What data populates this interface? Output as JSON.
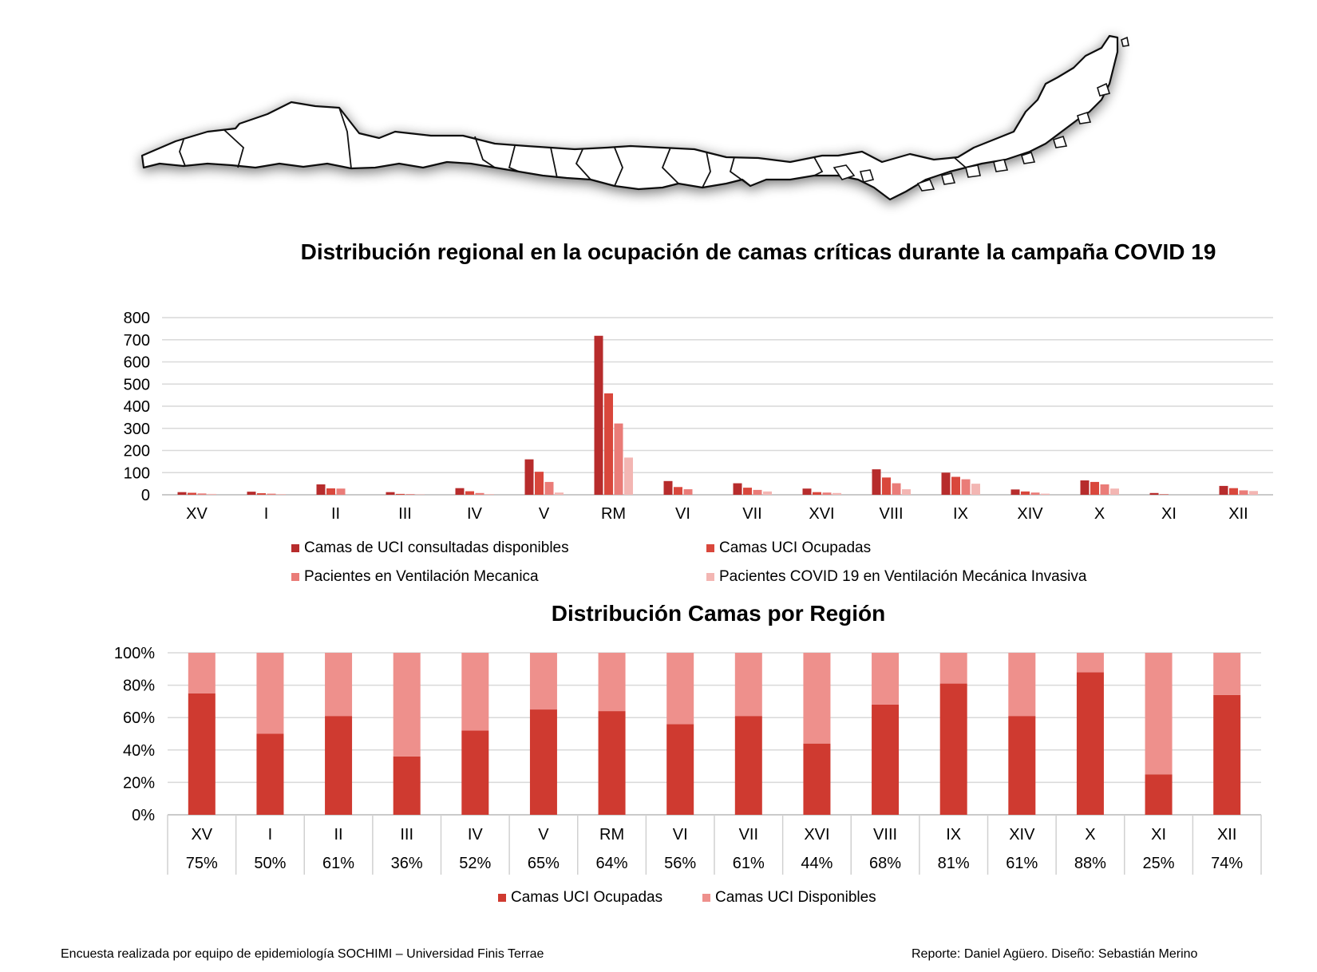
{
  "colors": {
    "uci_consultadas": "#b72c2c",
    "uci_ocupadas": "#d9473c",
    "ventilacion": "#ea7c78",
    "covid_vmi": "#f3b6b3",
    "stack_ocupadas": "#cf3a30",
    "stack_disponibles": "#ee908c",
    "grid": "#d9d9d9"
  },
  "map": {
    "icon": "chile-regions-map-icon"
  },
  "chart_data": [
    {
      "type": "bar",
      "title": "Distribución regional en la ocupación de camas críticas durante la campaña COVID 19",
      "categories": [
        "XV",
        "I",
        "II",
        "III",
        "IV",
        "V",
        "RM",
        "VI",
        "VII",
        "XVI",
        "VIII",
        "IX",
        "XIV",
        "X",
        "XI",
        "XII"
      ],
      "ylim": [
        0,
        800
      ],
      "yticks": [
        "800",
        "700",
        "600",
        "500",
        "400",
        "300",
        "200",
        "100",
        "0"
      ],
      "grid": true,
      "legend_position": "bottom",
      "series": [
        {
          "name": "Camas de UCI consultadas disponibles",
          "values": [
            12,
            14,
            47,
            12,
            30,
            160,
            718,
            62,
            52,
            28,
            115,
            100,
            24,
            65,
            8,
            40
          ]
        },
        {
          "name": "Camas UCI Ocupadas",
          "values": [
            9,
            7,
            29,
            4,
            16,
            104,
            458,
            35,
            32,
            12,
            78,
            81,
            15,
            58,
            2,
            30
          ]
        },
        {
          "name": "Pacientes en Ventilación Mecanica",
          "values": [
            6,
            5,
            28,
            3,
            8,
            58,
            322,
            25,
            22,
            10,
            52,
            70,
            10,
            47,
            0,
            20
          ]
        },
        {
          "name": "Pacientes COVID 19 en Ventilación Mecánica Invasiva",
          "values": [
            4,
            3,
            0,
            2,
            3,
            10,
            168,
            0,
            15,
            8,
            25,
            50,
            5,
            28,
            0,
            17
          ]
        }
      ]
    },
    {
      "type": "bar",
      "stacked": true,
      "title": "Distribución Camas por Región",
      "categories": [
        "XV",
        "I",
        "II",
        "III",
        "IV",
        "V",
        "RM",
        "VI",
        "VII",
        "XVI",
        "VIII",
        "IX",
        "XIV",
        "X",
        "XI",
        "XII"
      ],
      "yticks": [
        "100%",
        "80%",
        "60%",
        "40%",
        "20%",
        "0%"
      ],
      "ylim": [
        0,
        100
      ],
      "grid": true,
      "legend_position": "bottom",
      "table_row": [
        "75%",
        "50%",
        "61%",
        "36%",
        "52%",
        "65%",
        "64%",
        "56%",
        "61%",
        "44%",
        "68%",
        "81%",
        "61%",
        "88%",
        "25%",
        "74%"
      ],
      "series": [
        {
          "name": "Camas UCI Ocupadas",
          "values": [
            75,
            50,
            61,
            36,
            52,
            65,
            64,
            56,
            61,
            44,
            68,
            81,
            61,
            88,
            25,
            74
          ]
        },
        {
          "name": "Camas UCI Disponibles",
          "values": [
            25,
            50,
            39,
            64,
            48,
            35,
            36,
            44,
            39,
            56,
            32,
            19,
            39,
            12,
            75,
            26
          ]
        }
      ]
    }
  ],
  "footer": {
    "left": "Encuesta realizada por equipo de epidemiología SOCHIMI – Universidad Finis Terrae",
    "right": "Reporte: Daniel Agüero. Diseño: Sebastián Merino"
  }
}
